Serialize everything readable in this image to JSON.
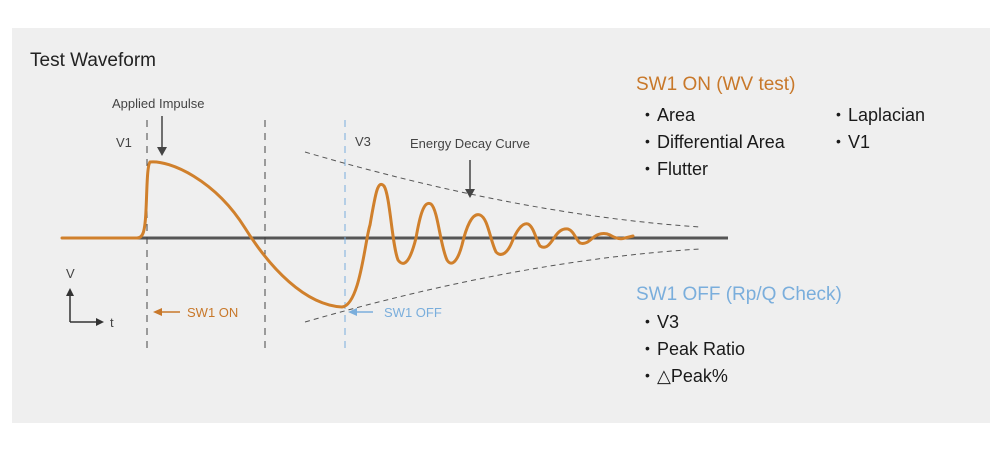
{
  "title": "Test Waveform",
  "colors": {
    "waveform": "#d0802c",
    "sw_on": "#c8782a",
    "sw_off": "#7aaedc",
    "baseline": "#555555",
    "panel": "#efefef"
  },
  "labels": {
    "applied_impulse": "Applied Impulse",
    "v1": "V1",
    "v3": "V3",
    "energy_decay": "Energy Decay Curve",
    "axis_v": "V",
    "axis_t": "t",
    "sw1_on_marker": "SW1 ON",
    "sw1_off_marker": "SW1 OFF"
  },
  "sw1_on_group": {
    "heading": "SW1 ON (WV test)",
    "col1": [
      "Area",
      "Differential Area",
      "Flutter"
    ],
    "col2": [
      "Laplacian",
      "V1"
    ]
  },
  "sw1_off_group": {
    "heading": "SW1 OFF (Rp/Q Check)",
    "items": [
      "V3",
      "Peak Ratio",
      "△Peak%"
    ]
  },
  "bullet_glyph": "•"
}
